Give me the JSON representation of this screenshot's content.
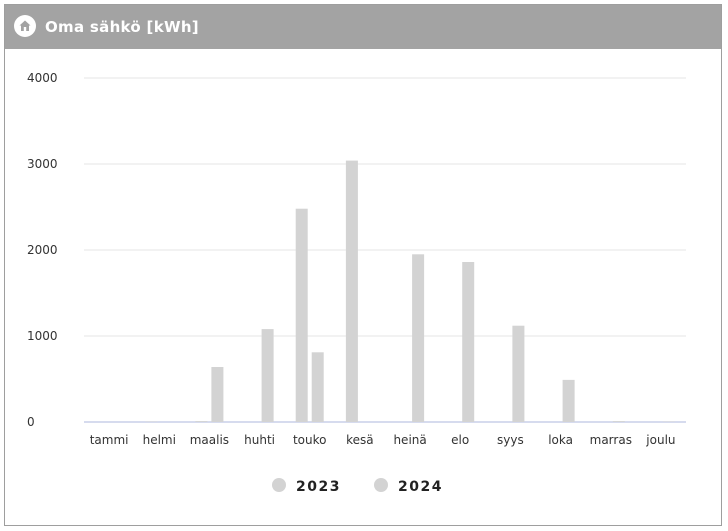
{
  "header": {
    "title": "Oma sähkö [kWh]",
    "icon": "home-icon"
  },
  "colors": {
    "header_bg": "#a3a3a3",
    "bar_2023": "#d3d3d3",
    "bar_2024": "#d3d3d3",
    "grid": "#e6e6e6",
    "baseline": "#c9cfe8"
  },
  "chart_data": {
    "type": "bar",
    "categories": [
      "tammi",
      "helmi",
      "maalis",
      "huhti",
      "touko",
      "kesä",
      "heinä",
      "elo",
      "syys",
      "loka",
      "marras",
      "joulu"
    ],
    "series": [
      {
        "name": "2023",
        "values": [
          0,
          5,
          10,
          0,
          2480,
          3040,
          0,
          0,
          0,
          0,
          0,
          0
        ]
      },
      {
        "name": "2024",
        "values": [
          0,
          0,
          640,
          1080,
          810,
          0,
          1950,
          1860,
          1120,
          490,
          10,
          5
        ]
      }
    ],
    "yticks": [
      "0",
      "1000",
      "2000",
      "3000",
      "4000"
    ],
    "ylim": [
      0,
      4000
    ],
    "grid": true,
    "legend_position": "bottom"
  }
}
